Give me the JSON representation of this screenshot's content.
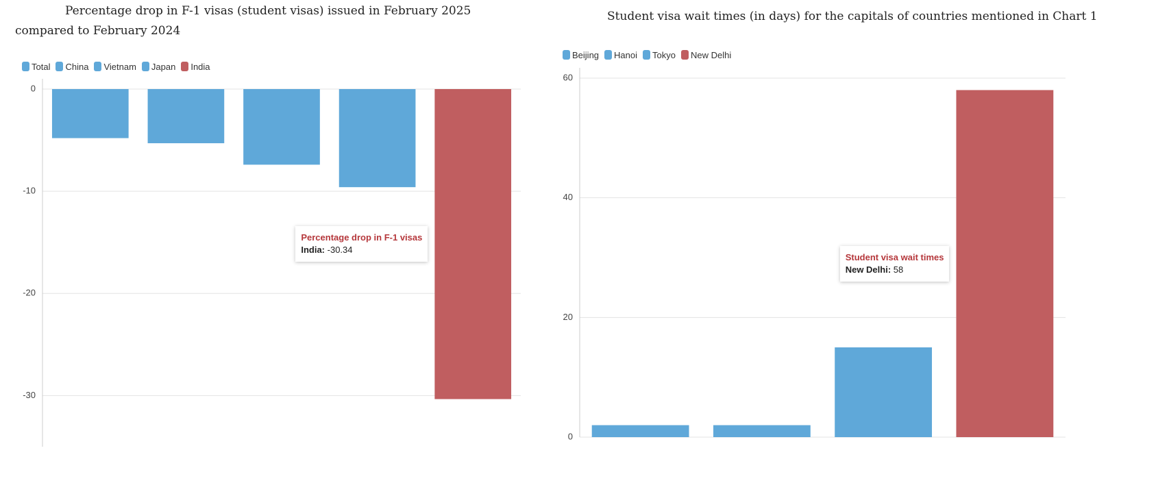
{
  "chart_data": [
    {
      "type": "bar",
      "title": "Percentage drop in F-1 visas (student visas) issued in February 2025 compared to February 2024",
      "categories": [
        "Total",
        "China",
        "Vietnam",
        "Japan",
        "India"
      ],
      "values": [
        -4.8,
        -5.3,
        -7.4,
        -9.6,
        -30.34
      ],
      "colors": [
        "#5fa8d9",
        "#5fa8d9",
        "#5fa8d9",
        "#5fa8d9",
        "#c05e60"
      ],
      "ylim": [
        -35,
        0
      ],
      "yticks": [
        0,
        -10,
        -20,
        -30
      ],
      "grid": true,
      "legend": "top-left",
      "tooltip": {
        "title": "Percentage drop in F-1 visas",
        "label": "India:",
        "index": 4
      }
    },
    {
      "type": "bar",
      "title": "Student visa wait times (in days) for the capitals of countries mentioned in Chart 1",
      "categories": [
        "Beijing",
        "Hanoi",
        "Tokyo",
        "New Delhi"
      ],
      "values": [
        2,
        2,
        15,
        58
      ],
      "colors": [
        "#5fa8d9",
        "#5fa8d9",
        "#5fa8d9",
        "#c05e60"
      ],
      "ylim": [
        0,
        60
      ],
      "yticks": [
        0,
        20,
        40,
        60
      ],
      "grid": true,
      "legend": "top-left",
      "tooltip": {
        "title": "Student visa wait times",
        "label": "New Delhi:",
        "index": 3
      }
    }
  ]
}
